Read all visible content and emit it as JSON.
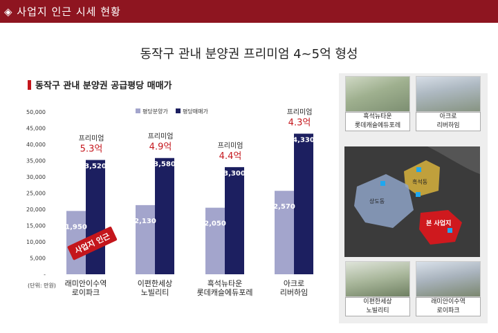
{
  "header": {
    "title": "◈ 사업지 인근 시세 현황"
  },
  "headline": "동작구 관내 분양권 프리미엄 4~5억 형성",
  "subtitle": "동작구 관내 분양권 공급평당 매매가",
  "stamp": "사업지 인근",
  "units": "(단위: 만원)",
  "premium_label": "프리미엄",
  "legend": [
    "평당분양가",
    "평당매매가"
  ],
  "colors": {
    "sale_price": "#a3a5cc",
    "market_price": "#1c1f60",
    "premium": "#c4161c",
    "header": "#8e1520"
  },
  "chart_data": {
    "type": "bar",
    "categories": [
      [
        "래미안이수역",
        "로이파크"
      ],
      [
        "이편한세상",
        "노빌리티"
      ],
      [
        "흑석뉴타운",
        "롯데캐슬에듀포레"
      ],
      [
        "아크로",
        "리버하임"
      ]
    ],
    "series": [
      {
        "name": "평당분양가",
        "values": [
          1950,
          2130,
          2050,
          2570
        ]
      },
      {
        "name": "평당매매가",
        "values": [
          3520,
          3580,
          3300,
          4330
        ]
      }
    ],
    "premiums": [
      "5.3억",
      "4.9억",
      "4.4억",
      "4.3억"
    ],
    "ylim": [
      0,
      50000
    ],
    "yticks": [
      "-",
      "5,000",
      "10,000",
      "15,000",
      "20,000",
      "25,000",
      "30,000",
      "35,000",
      "40,000",
      "45,000",
      "50,000"
    ],
    "value_labels": {
      "sale": [
        "1,950",
        "2,130",
        "2,050",
        "2,570"
      ],
      "market": [
        "3,520",
        "3,580",
        "3,300",
        "4,330"
      ]
    }
  },
  "map": {
    "labels": [
      "흑석동",
      "상도동",
      "본 사업지",
      "흑석뉴타운\n롯데캐슬에듀포레"
    ],
    "places": [
      {
        "name": "흑석뉴타운 롯데캐슬에듀포레",
        "line1": "흑석뉴타운",
        "line2": "롯데캐슬에듀포레"
      },
      {
        "name": "아크로 리버하임",
        "line1": "아크로",
        "line2": "리버하임"
      },
      {
        "name": "이편한세상 노빌리티",
        "line1": "이편한세상",
        "line2": "노빌리티"
      },
      {
        "name": "래미안이수역 로이파크",
        "line1": "래미안이수역",
        "line2": "로이파크"
      }
    ],
    "area_labels": {
      "heukseok": "흑석동",
      "sangdo": "상도동",
      "site": "본 사업지"
    }
  }
}
